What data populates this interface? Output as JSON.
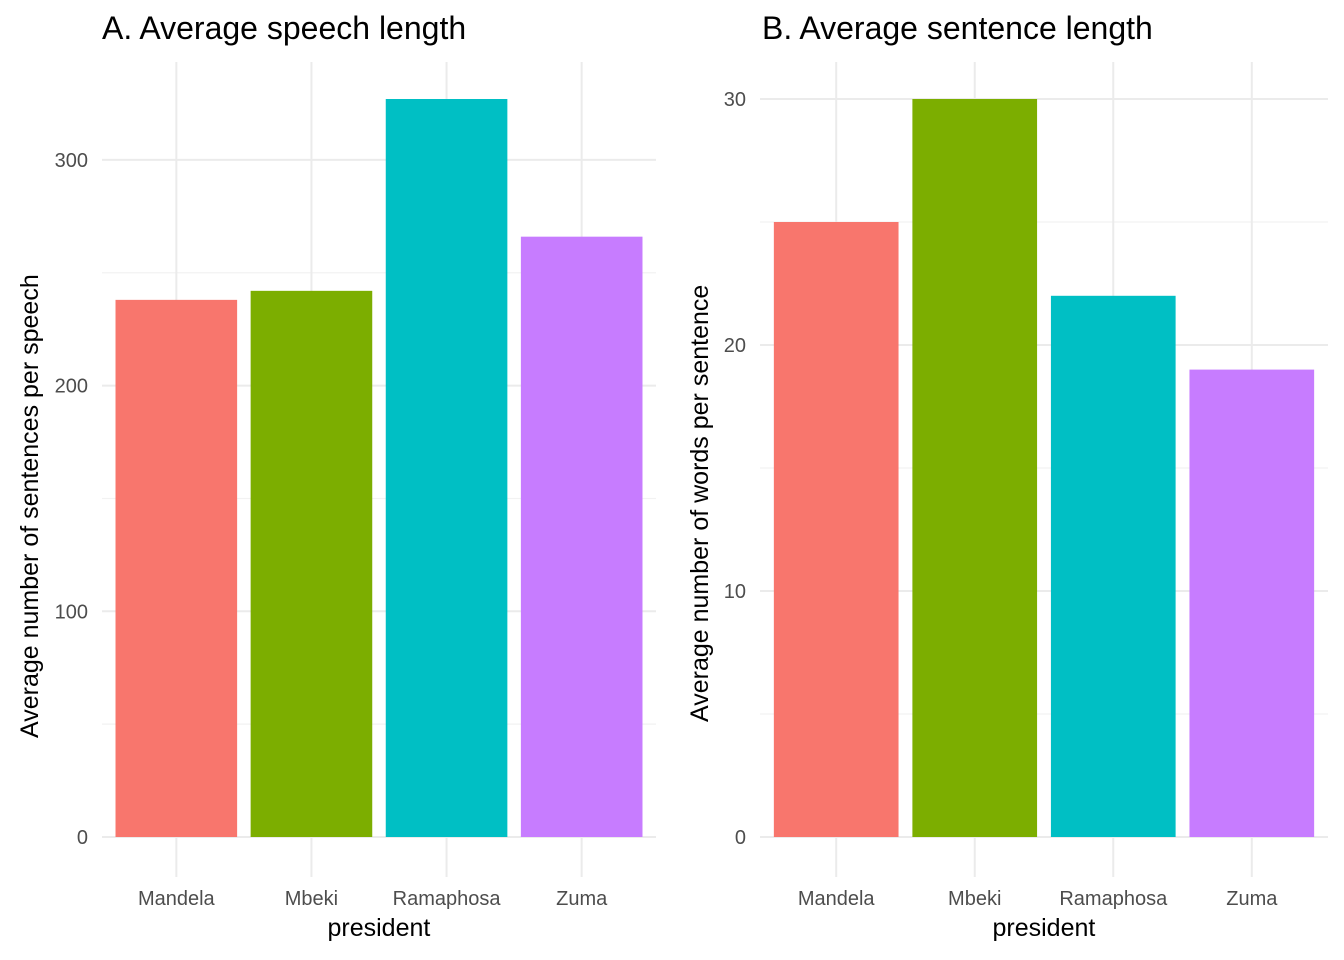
{
  "chart_data": [
    {
      "type": "bar",
      "title": "A. Average speech length",
      "xlabel": "president",
      "ylabel": "Average number of sentences per speech",
      "categories": [
        "Mandela",
        "Mbeki",
        "Ramaphosa",
        "Zuma"
      ],
      "values": [
        238,
        242,
        327,
        266
      ],
      "colors": [
        "#F8766D",
        "#7CAE00",
        "#00BFC4",
        "#C77CFF"
      ],
      "yticks": [
        0,
        100,
        200,
        300
      ],
      "ylim": [
        0,
        327
      ],
      "grid": true,
      "legend": "none"
    },
    {
      "type": "bar",
      "title": "B. Average sentence length",
      "xlabel": "president",
      "ylabel": "Average number of words per sentence",
      "categories": [
        "Mandela",
        "Mbeki",
        "Ramaphosa",
        "Zuma"
      ],
      "values": [
        25,
        30,
        22,
        19
      ],
      "colors": [
        "#F8766D",
        "#7CAE00",
        "#00BFC4",
        "#C77CFF"
      ],
      "yticks": [
        0,
        10,
        20,
        30
      ],
      "ylim": [
        0,
        30
      ],
      "grid": true,
      "legend": "none"
    }
  ]
}
